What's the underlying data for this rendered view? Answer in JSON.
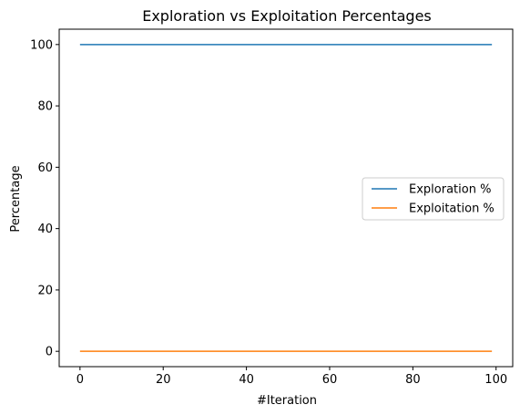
{
  "chart_data": {
    "type": "line",
    "title": "Exploration vs Exploitation Percentages",
    "xlabel": "#Iteration",
    "ylabel": "Percentage",
    "xlim": [
      -5,
      104
    ],
    "ylim": [
      -5,
      105
    ],
    "xticks": [
      0,
      20,
      40,
      60,
      80,
      100
    ],
    "yticks": [
      0,
      20,
      40,
      60,
      80,
      100
    ],
    "grid": false,
    "legend_position": "center-right",
    "series": [
      {
        "name": "Exploration %",
        "color": "#1f77b4",
        "x": [
          0,
          99
        ],
        "y": [
          100,
          100
        ]
      },
      {
        "name": "Exploitation %",
        "color": "#ff7f0e",
        "x": [
          0,
          99
        ],
        "y": [
          0,
          0
        ]
      }
    ]
  }
}
